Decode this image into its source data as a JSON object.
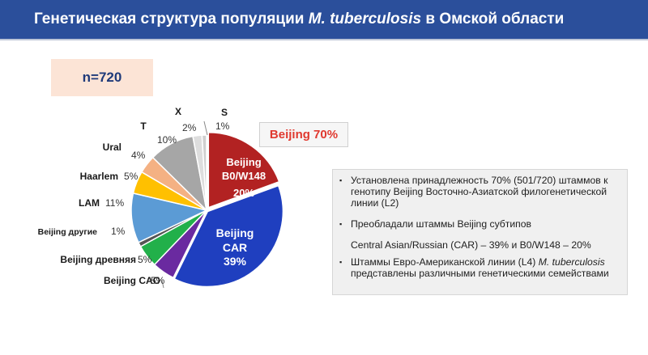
{
  "header": {
    "title_pre": "Генетическая структура популяции ",
    "title_italic": "M. tuberculosis",
    "title_post": " в Омской области",
    "bg_color": "#2b4f9b"
  },
  "sample_size": "n=720",
  "highlight": "Beijing 70%",
  "notes": [
    {
      "pre": "Установлена принадлежность 70% (501/720) штаммов к генотипу Beijing Восточно-Азиатской филогенетической линии (L2)",
      "italic": "",
      "post": ""
    },
    {
      "pre": "Преобладали штаммы Beijing субтипов",
      "italic": "",
      "post": ""
    },
    {
      "pre": "Central Asian/Russian (CAR) – 39% и B0/W148 – 20%",
      "italic": "",
      "post": ""
    },
    {
      "pre": "Штаммы Евро-Американской линии (L4) ",
      "italic": "M. tuberculosis",
      "post": " представлены различными генетическими семействами"
    }
  ],
  "chart_data": {
    "type": "pie",
    "title": "",
    "total": 720,
    "slices": [
      {
        "name": "Beijing B0/W148",
        "inner_lines": [
          "Beijing",
          "B0/W148"
        ],
        "value": 20,
        "value_label": "20%",
        "color": "#b22222"
      },
      {
        "name": "Beijing CAR",
        "inner_lines": [
          "Beijing",
          "CAR"
        ],
        "value": 39,
        "value_label": "39%",
        "color": "#1f3fbf"
      },
      {
        "name": "Beijing CAO",
        "value": 5,
        "value_label": "5%",
        "color": "#6a2aa0"
      },
      {
        "name": "Beijing древняя",
        "value": 5,
        "value_label": "5%",
        "color": "#22b04a"
      },
      {
        "name": "Beijing другие",
        "value": 1,
        "value_label": "1%",
        "color": "#555555"
      },
      {
        "name": "LAM",
        "value": 11,
        "value_label": "11%",
        "color": "#5b9bd5"
      },
      {
        "name": "Haarlem",
        "value": 5,
        "value_label": "5%",
        "color": "#ffc000"
      },
      {
        "name": "Ural",
        "value": 4,
        "value_label": "4%",
        "color": "#f4b183"
      },
      {
        "name": "T",
        "value": 10,
        "value_label": "10%",
        "color": "#a6a6a6"
      },
      {
        "name": "X",
        "value": 2,
        "value_label": "2%",
        "color": "#dddddd"
      },
      {
        "name": "S",
        "value": 1,
        "value_label": "1%",
        "color": "#cfcfcf"
      }
    ]
  }
}
